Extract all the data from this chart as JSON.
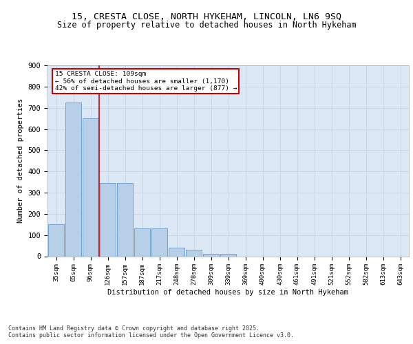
{
  "title_line1": "15, CRESTA CLOSE, NORTH HYKEHAM, LINCOLN, LN6 9SQ",
  "title_line2": "Size of property relative to detached houses in North Hykeham",
  "xlabel": "Distribution of detached houses by size in North Hykeham",
  "ylabel": "Number of detached properties",
  "categories": [
    "35sqm",
    "65sqm",
    "96sqm",
    "126sqm",
    "157sqm",
    "187sqm",
    "217sqm",
    "248sqm",
    "278sqm",
    "309sqm",
    "339sqm",
    "369sqm",
    "400sqm",
    "430sqm",
    "461sqm",
    "491sqm",
    "521sqm",
    "552sqm",
    "582sqm",
    "613sqm",
    "643sqm"
  ],
  "values": [
    150,
    725,
    650,
    345,
    345,
    130,
    130,
    40,
    30,
    12,
    12,
    0,
    0,
    0,
    0,
    0,
    0,
    0,
    0,
    0,
    0
  ],
  "bar_color": "#b8cfe8",
  "bar_edge_color": "#6699cc",
  "grid_color": "#c8d8e8",
  "annotation_text": "15 CRESTA CLOSE: 109sqm\n← 56% of detached houses are smaller (1,170)\n42% of semi-detached houses are larger (877) →",
  "vline_position": 2.5,
  "annotation_box_color": "#ffffff",
  "annotation_box_edge": "#cc0000",
  "vline_color": "#cc0000",
  "footer": "Contains HM Land Registry data © Crown copyright and database right 2025.\nContains public sector information licensed under the Open Government Licence v3.0.",
  "ylim": [
    0,
    900
  ],
  "yticks": [
    0,
    100,
    200,
    300,
    400,
    500,
    600,
    700,
    800,
    900
  ],
  "background_color": "#dce8f5",
  "title_fontsize": 9.5,
  "subtitle_fontsize": 8.5,
  "footer_fontsize": 6.0
}
